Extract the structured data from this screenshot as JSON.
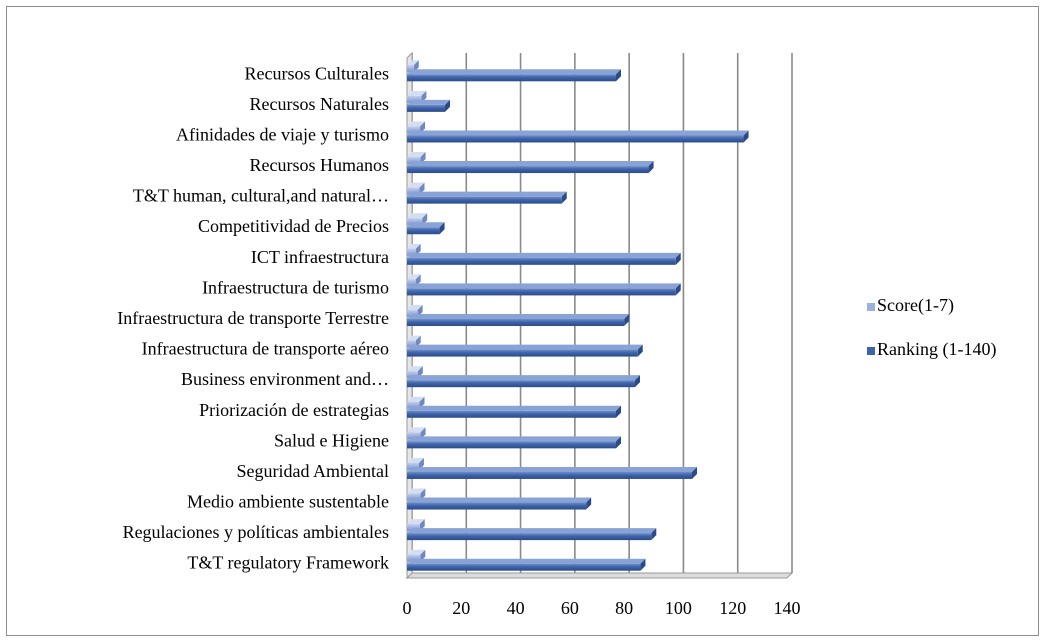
{
  "chart_data": {
    "type": "bar",
    "orientation": "horizontal",
    "categories": [
      "Recursos Culturales",
      "Recursos Naturales",
      "Afinidades de viaje y turismo",
      "Recursos Humanos",
      "T&T human, cultural,and natural…",
      "Competitividad de Precios",
      "ICT infraestructura",
      "Infraestructura de turismo",
      "Infraestructura de transporte Terrestre",
      "Infraestructura de transporte aéreo",
      "Business environment and…",
      "Priorización de estrategias",
      "Salud e Higiene",
      "Seguridad Ambiental",
      "Medio ambiente sustentable",
      "Regulaciones y políticas ambientales",
      "T&T regulatory Framework"
    ],
    "series": [
      {
        "name": "Score(1-7)",
        "color": "#9bb0dc",
        "values": [
          2.5,
          5.3,
          4.8,
          5.0,
          4.6,
          5.6,
          3.2,
          3.2,
          3.9,
          3.2,
          4.0,
          4.6,
          5.0,
          4.4,
          4.9,
          4.7,
          4.9
        ]
      },
      {
        "name": "Ranking (1-140)",
        "color": "#3e63a8",
        "values": [
          77,
          14,
          124,
          89,
          57,
          12,
          99,
          99,
          80,
          85,
          84,
          77,
          77,
          105,
          66,
          90,
          86
        ]
      }
    ],
    "xlim": [
      0,
      140
    ],
    "xticks": [
      0,
      20,
      40,
      60,
      80,
      100,
      120,
      140
    ],
    "grid": true,
    "legend": "right",
    "style": "3d",
    "title": "",
    "xlabel": "",
    "ylabel": ""
  }
}
